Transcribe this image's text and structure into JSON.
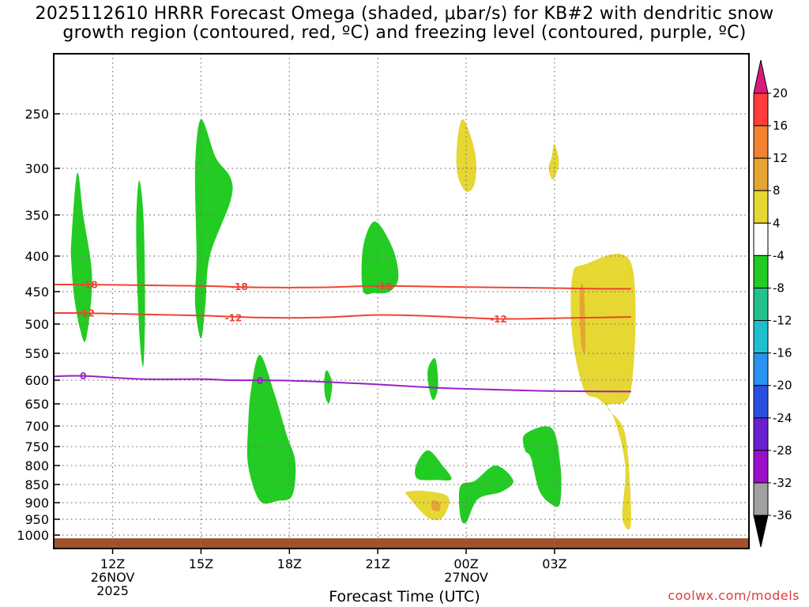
{
  "title": {
    "line1": "2025112610 HRRR Forecast Omega (shaded, μbar/s) for KB#2 with dendritic snow",
    "line2": "growth region (contoured, red, ºC) and freezing level (contoured, purple, ºC)"
  },
  "credit": "coolwx.com/models",
  "chart_data": {
    "type": "time-height cross section",
    "xlabel": "Forecast Time (UTC)",
    "ylabel": "",
    "x_axis": {
      "range_hours_utc": [
        10,
        33.6
      ],
      "ticks": [
        {
          "hour": 12,
          "label": "12Z",
          "sublabel1": "26NOV",
          "sublabel2": "2025"
        },
        {
          "hour": 15,
          "label": "15Z",
          "sublabel1": "",
          "sublabel2": ""
        },
        {
          "hour": 18,
          "label": "18Z",
          "sublabel1": "",
          "sublabel2": ""
        },
        {
          "hour": 21,
          "label": "21Z",
          "sublabel1": "",
          "sublabel2": ""
        },
        {
          "hour": 24,
          "label": "00Z",
          "sublabel1": "27NOV",
          "sublabel2": ""
        },
        {
          "hour": 27,
          "label": "03Z",
          "sublabel1": "",
          "sublabel2": ""
        }
      ]
    },
    "y_axis": {
      "units": "hPa",
      "range": [
        1050,
        200
      ],
      "ticks": [
        250,
        300,
        350,
        400,
        450,
        500,
        550,
        600,
        650,
        700,
        750,
        800,
        850,
        900,
        950,
        1000
      ]
    },
    "colorbar": {
      "labels": [
        20,
        16,
        12,
        8,
        4,
        -4,
        -8,
        -12,
        -16,
        -20,
        -24,
        -28,
        -32,
        -36
      ],
      "colors": [
        "#ff3b3b",
        "#f08232",
        "#e6a532",
        "#e6d732",
        "#ffffff",
        "#22cc22",
        "#22c28a",
        "#1fbfcf",
        "#2a92f0",
        "#2a4fe0",
        "#6a1fd0",
        "#9a10c8",
        "#a0a0a0"
      ],
      "top_arrow_color": "#d81b7a",
      "bottom_arrow_color": "#000000"
    },
    "contours": [
      {
        "name": "-18 C",
        "color": "#ee4433",
        "label": "-18",
        "points": [
          [
            10,
            440
          ],
          [
            11,
            440
          ],
          [
            13,
            441
          ],
          [
            15,
            442
          ],
          [
            17,
            444
          ],
          [
            19,
            444
          ],
          [
            21,
            442
          ],
          [
            23,
            443
          ],
          [
            25,
            444
          ],
          [
            27,
            445
          ],
          [
            28.5,
            446
          ],
          [
            29.6,
            446
          ]
        ],
        "label_positions": [
          [
            11.2,
            440
          ],
          [
            16.3,
            443
          ],
          [
            21.2,
            442
          ]
        ]
      },
      {
        "name": "-12 C",
        "color": "#ee4433",
        "label": "-12",
        "points": [
          [
            10,
            483
          ],
          [
            11,
            483
          ],
          [
            13,
            485
          ],
          [
            15,
            487
          ],
          [
            17,
            490
          ],
          [
            19,
            490
          ],
          [
            21,
            486
          ],
          [
            23,
            488
          ],
          [
            25,
            492
          ],
          [
            27,
            491
          ],
          [
            28.5,
            490
          ],
          [
            29.6,
            489
          ]
        ],
        "label_positions": [
          [
            11.1,
            483
          ],
          [
            16.1,
            490
          ],
          [
            25.1,
            492
          ]
        ]
      },
      {
        "name": "0 C freezing level",
        "color": "#9b20c8",
        "label": "0",
        "points": [
          [
            10,
            593
          ],
          [
            11,
            592
          ],
          [
            13,
            598
          ],
          [
            15,
            598
          ],
          [
            16,
            600
          ],
          [
            18,
            601
          ],
          [
            20,
            606
          ],
          [
            21,
            609
          ],
          [
            23,
            616
          ],
          [
            25,
            620
          ],
          [
            27,
            623
          ],
          [
            29.6,
            624
          ]
        ],
        "label_positions": [
          [
            11,
            592
          ],
          [
            17,
            601
          ]
        ]
      }
    ],
    "shaded_regions": [
      {
        "value_class": "-4 to -8",
        "color": "#22cc22",
        "points": [
          [
            10.6,
            380
          ],
          [
            10.8,
            305
          ],
          [
            11.0,
            350
          ],
          [
            11.3,
            430
          ],
          [
            11.1,
            525
          ],
          [
            10.9,
            510
          ],
          [
            10.7,
            460
          ],
          [
            10.6,
            410
          ]
        ]
      },
      {
        "value_class": "-4 to -8",
        "color": "#22cc22",
        "points": [
          [
            12.8,
            360
          ],
          [
            12.9,
            313
          ],
          [
            13.05,
            355
          ],
          [
            13.1,
            470
          ],
          [
            13.05,
            570
          ],
          [
            12.95,
            545
          ],
          [
            12.85,
            460
          ]
        ]
      },
      {
        "value_class": "-4 to -8",
        "color": "#22cc22",
        "points": [
          [
            14.8,
            300
          ],
          [
            15.0,
            255
          ],
          [
            15.5,
            290
          ],
          [
            16.0,
            310
          ],
          [
            16.0,
            335
          ],
          [
            15.3,
            400
          ],
          [
            15.15,
            470
          ],
          [
            15.0,
            525
          ],
          [
            14.8,
            470
          ],
          [
            14.85,
            400
          ]
        ]
      },
      {
        "value_class": "-4 to -8",
        "color": "#22cc22",
        "points": [
          [
            16.7,
            620
          ],
          [
            17.0,
            553
          ],
          [
            17.5,
            630
          ],
          [
            17.9,
            720
          ],
          [
            18.2,
            790
          ],
          [
            18.1,
            880
          ],
          [
            17.6,
            895
          ],
          [
            17.0,
            895
          ],
          [
            16.6,
            800
          ],
          [
            16.6,
            700
          ]
        ]
      },
      {
        "value_class": "-4 to -8",
        "color": "#22cc22",
        "points": [
          [
            20.5,
            390
          ],
          [
            20.9,
            358
          ],
          [
            21.5,
            390
          ],
          [
            21.7,
            430
          ],
          [
            21.4,
            450
          ],
          [
            20.9,
            452
          ],
          [
            20.5,
            448
          ]
        ]
      },
      {
        "value_class": "-4 to -8",
        "color": "#22cc22",
        "points": [
          [
            19.2,
            590
          ],
          [
            19.3,
            583
          ],
          [
            19.45,
            608
          ],
          [
            19.35,
            648
          ],
          [
            19.2,
            630
          ]
        ]
      },
      {
        "value_class": "-4 to -8",
        "color": "#22cc22",
        "points": [
          [
            22.7,
            580
          ],
          [
            22.95,
            560
          ],
          [
            23.05,
            610
          ],
          [
            22.9,
            642
          ],
          [
            22.75,
            620
          ]
        ]
      },
      {
        "value_class": "-4 to -8",
        "color": "#22cc22",
        "points": [
          [
            22.3,
            800
          ],
          [
            22.7,
            760
          ],
          [
            23.2,
            800
          ],
          [
            23.5,
            836
          ],
          [
            23.0,
            838
          ],
          [
            22.35,
            835
          ]
        ]
      },
      {
        "value_class": "-4 to -8",
        "color": "#22cc22",
        "points": [
          [
            23.8,
            855
          ],
          [
            24.3,
            840
          ],
          [
            25.0,
            800
          ],
          [
            25.6,
            840
          ],
          [
            25.2,
            870
          ],
          [
            24.4,
            890
          ],
          [
            24.0,
            960
          ],
          [
            23.8,
            940
          ]
        ]
      },
      {
        "value_class": "-4 to -8",
        "color": "#22cc22",
        "points": [
          [
            26.0,
            720
          ],
          [
            26.9,
            705
          ],
          [
            27.2,
            800
          ],
          [
            27.2,
            895
          ],
          [
            27.0,
            910
          ],
          [
            26.5,
            870
          ],
          [
            26.2,
            780
          ],
          [
            26.0,
            760
          ]
        ]
      },
      {
        "value_class": "4 to 8",
        "color": "#e6d732",
        "points": [
          [
            23.7,
            275
          ],
          [
            23.9,
            255
          ],
          [
            24.3,
            285
          ],
          [
            24.3,
            315
          ],
          [
            24.0,
            325
          ],
          [
            23.7,
            305
          ]
        ]
      },
      {
        "value_class": "4 to 8",
        "color": "#e6d732",
        "points": [
          [
            26.9,
            290
          ],
          [
            27.0,
            278
          ],
          [
            27.15,
            295
          ],
          [
            26.95,
            312
          ],
          [
            26.8,
            300
          ]
        ]
      },
      {
        "value_class": "4 to 8",
        "color": "#e6d732",
        "points": [
          [
            28.0,
            412
          ],
          [
            29.6,
            410
          ],
          [
            29.6,
            620
          ],
          [
            28.8,
            655
          ],
          [
            29.4,
            720
          ],
          [
            29.6,
            960
          ],
          [
            29.3,
            945
          ],
          [
            29.4,
            800
          ],
          [
            29.0,
            680
          ],
          [
            28.5,
            640
          ],
          [
            28.0,
            620
          ],
          [
            27.6,
            520
          ],
          [
            27.6,
            430
          ]
        ]
      },
      {
        "value_class": "4 to 8",
        "color": "#e6d732",
        "points": [
          [
            22.0,
            870
          ],
          [
            22.6,
            868
          ],
          [
            23.4,
            885
          ],
          [
            23.2,
            945
          ],
          [
            22.7,
            945
          ],
          [
            22.0,
            880
          ]
        ]
      },
      {
        "value_class": "8 to 12",
        "color": "#e6a532",
        "points": [
          [
            27.9,
            440
          ],
          [
            28.0,
            452
          ],
          [
            28.05,
            530
          ],
          [
            28.0,
            550
          ],
          [
            27.9,
            530
          ],
          [
            27.85,
            470
          ]
        ]
      },
      {
        "value_class": "8 to 12",
        "color": "#e6a532",
        "points": [
          [
            22.85,
            895
          ],
          [
            23.1,
            900
          ],
          [
            23.1,
            925
          ],
          [
            22.85,
            920
          ]
        ]
      }
    ],
    "terrain": {
      "color": "#a0522d",
      "pressure_hpa": 1012
    }
  }
}
